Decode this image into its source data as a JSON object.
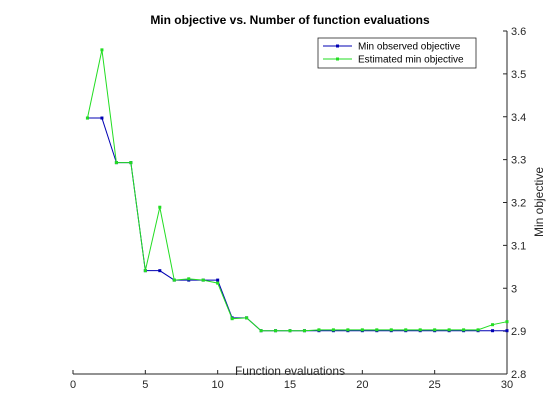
{
  "chart_data": {
    "type": "line",
    "title": "Min objective vs. Number of function evaluations",
    "xlabel": "Function evaluations",
    "ylabel": "Min objective",
    "xlim": [
      0,
      30
    ],
    "ylim": [
      2.8,
      3.6
    ],
    "xticks": [
      "0",
      "5",
      "10",
      "15",
      "20",
      "25",
      "30"
    ],
    "xtick_values": [
      0,
      5,
      10,
      15,
      20,
      25,
      30
    ],
    "yticks": [
      "2.8",
      "2.9",
      "3",
      "3.1",
      "3.2",
      "3.3",
      "3.4",
      "3.5",
      "3.6"
    ],
    "ytick_values": [
      2.8,
      2.9,
      3.0,
      3.1,
      3.2,
      3.3,
      3.4,
      3.5,
      3.6
    ],
    "y_axis_side": "right",
    "grid": false,
    "legend_position": "top-right",
    "x": [
      1,
      2,
      3,
      4,
      5,
      6,
      7,
      8,
      9,
      10,
      11,
      12,
      13,
      14,
      15,
      16,
      17,
      18,
      19,
      20,
      21,
      22,
      23,
      24,
      25,
      26,
      27,
      28,
      29,
      30
    ],
    "series": [
      {
        "name": "Min observed objective",
        "color": "#0000b3",
        "values": [
          3.397,
          3.397,
          3.293,
          3.293,
          3.041,
          3.041,
          3.019,
          3.019,
          3.019,
          3.019,
          2.931,
          2.931,
          2.901,
          2.901,
          2.901,
          2.901,
          2.901,
          2.901,
          2.901,
          2.901,
          2.901,
          2.901,
          2.901,
          2.901,
          2.901,
          2.901,
          2.901,
          2.901,
          2.901,
          2.901
        ]
      },
      {
        "name": "Estimated min objective",
        "color": "#22dd22",
        "values": [
          3.397,
          3.556,
          3.293,
          3.293,
          3.041,
          3.189,
          3.019,
          3.022,
          3.019,
          3.012,
          2.929,
          2.931,
          2.901,
          2.901,
          2.901,
          2.901,
          2.903,
          2.903,
          2.903,
          2.903,
          2.903,
          2.903,
          2.903,
          2.903,
          2.903,
          2.903,
          2.903,
          2.903,
          2.915,
          2.922
        ]
      }
    ]
  }
}
